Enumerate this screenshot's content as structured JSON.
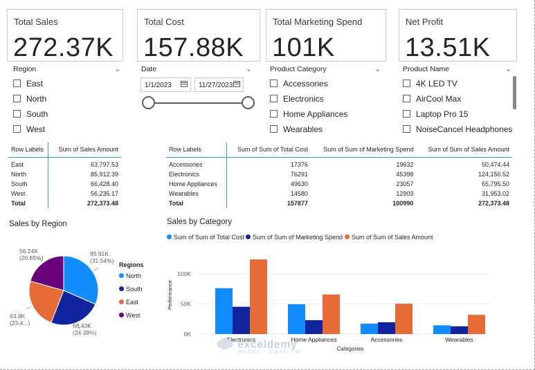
{
  "cards": [
    {
      "title": "Total Sales",
      "value": "272.37K"
    },
    {
      "title": "Total Cost",
      "value": "157.88K"
    },
    {
      "title": "Total Marketing Spend",
      "value": "101K"
    },
    {
      "title": "Net Profit",
      "value": "13.51K"
    }
  ],
  "slicers": {
    "region": {
      "title": "Region",
      "options": [
        "East",
        "North",
        "South",
        "West"
      ]
    },
    "date": {
      "title": "Date",
      "start": "1/1/2023",
      "end": "11/27/2023"
    },
    "category": {
      "title": "Product Category",
      "options": [
        "Accessories",
        "Electronics",
        "Home Appliances",
        "Wearables"
      ]
    },
    "product": {
      "title": "Product Name",
      "options": [
        "4K LED TV",
        "AirCool Max",
        "Laptop Pro 15",
        "NoiseCancel Headphones"
      ]
    }
  },
  "region_table": {
    "headers": [
      "Row Labels",
      "Sum of Sales Amount"
    ],
    "rows": [
      [
        "East",
        "63,797.53"
      ],
      [
        "North",
        "85,912.39"
      ],
      [
        "South",
        "66,428.40"
      ],
      [
        "West",
        "56,235.17"
      ]
    ],
    "total": [
      "Total",
      "272,373.48"
    ]
  },
  "category_table": {
    "headers": [
      "Row Labels",
      "Sum of Sum of Total Cost",
      "Sum of Sum of Marketing Spend",
      "Sum of Sum of Sales Amount"
    ],
    "rows": [
      [
        "Accessories",
        "17376",
        "19632",
        "50,474.44"
      ],
      [
        "Electronics",
        "76291",
        "45398",
        "124,150.52"
      ],
      [
        "Home Appliances",
        "49630",
        "23057",
        "65,795.50"
      ],
      [
        "Wearables",
        "14580",
        "12903",
        "31,953.02"
      ]
    ],
    "total": [
      "Total",
      "157877",
      "100990",
      "272,373.48"
    ]
  },
  "chart_data": [
    {
      "type": "pie",
      "title": "Sales by Region",
      "legend_title": "Regions",
      "categories": [
        "North",
        "South",
        "East",
        "West"
      ],
      "values": [
        85.91,
        66.43,
        63.8,
        56.24
      ],
      "labels": [
        {
          "value": "85.91K",
          "pct": "(31.54%)"
        },
        {
          "value": "66.43K",
          "pct": "(24.39%)"
        },
        {
          "value": "63.8K",
          "pct": "(23.4...)"
        },
        {
          "value": "56.24K",
          "pct": "(20.65%)"
        }
      ],
      "colors": [
        "#118dff",
        "#12239e",
        "#e66c37",
        "#6b007b"
      ]
    },
    {
      "type": "bar",
      "title": "Sales by Category",
      "categories": [
        "Electronics",
        "Home Appliances",
        "Accessories",
        "Wearables"
      ],
      "series": [
        {
          "name": "Sum of Sum of Total Cost",
          "values": [
            76291,
            49630,
            17376,
            14580
          ],
          "color": "#118dff"
        },
        {
          "name": "Sum of Sum of Marketing Spend",
          "values": [
            45398,
            23057,
            19632,
            12903
          ],
          "color": "#12239e"
        },
        {
          "name": "Sum of Sum of Sales Amount",
          "values": [
            124150.52,
            65795.5,
            50474.44,
            31953.02
          ],
          "color": "#e66c37"
        }
      ],
      "xlabel": "Categories",
      "ylabel": "Performance",
      "yticks": [
        "0K",
        "50K",
        "100K"
      ],
      "ylim": [
        0,
        130000
      ]
    }
  ],
  "watermark": {
    "brand": "exceldemy",
    "tagline": "EXCEL · DATA · BI"
  }
}
